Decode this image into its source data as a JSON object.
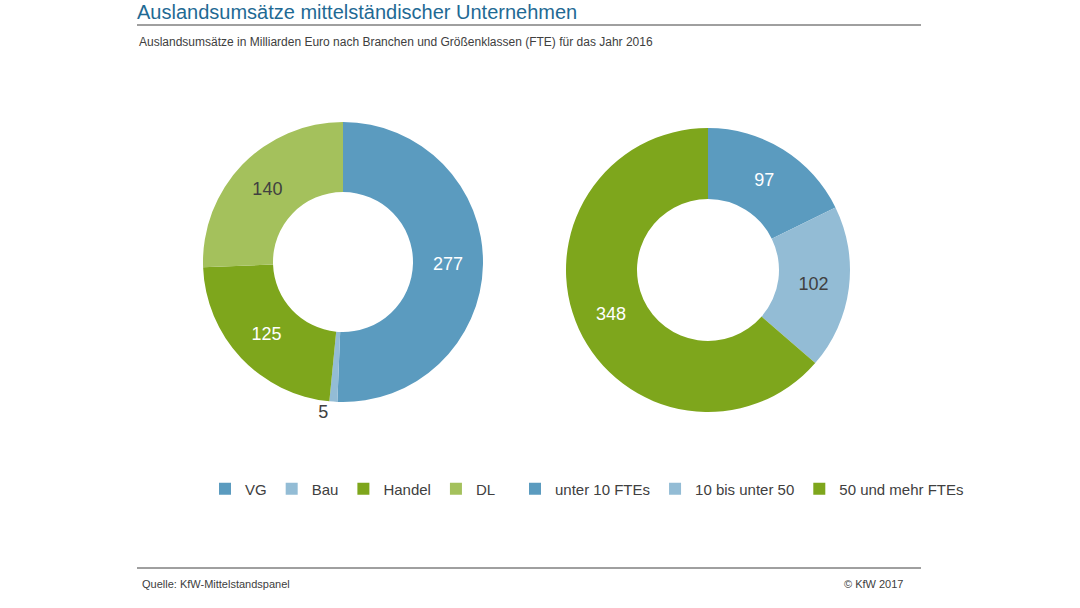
{
  "title": "Auslandsumsätze mittelständischer Unternehmen",
  "subtitle": "Auslandsumsätze in Milliarden Euro nach Branchen und Größenklassen (FTE) für das Jahr 2016",
  "source": "Quelle: KfW-Mittelstandspanel",
  "credit": "© KfW 2017",
  "chart_data": [
    {
      "type": "pie",
      "categories": [
        "VG",
        "Bau",
        "Handel",
        "DL"
      ],
      "values": [
        277,
        5,
        125,
        140
      ],
      "colors": [
        "#5b9bbf",
        "#93bcd5",
        "#7ea61c",
        "#a4c15c"
      ],
      "data_labels": true,
      "legend": "bottom"
    },
    {
      "type": "pie",
      "categories": [
        "unter 10 FTEs",
        "10 bis unter 50",
        "50 und mehr FTEs"
      ],
      "values": [
        97,
        102,
        348
      ],
      "colors": [
        "#5b9bbf",
        "#93bcd5",
        "#7ea61c"
      ],
      "data_labels": true,
      "legend": "bottom"
    }
  ]
}
